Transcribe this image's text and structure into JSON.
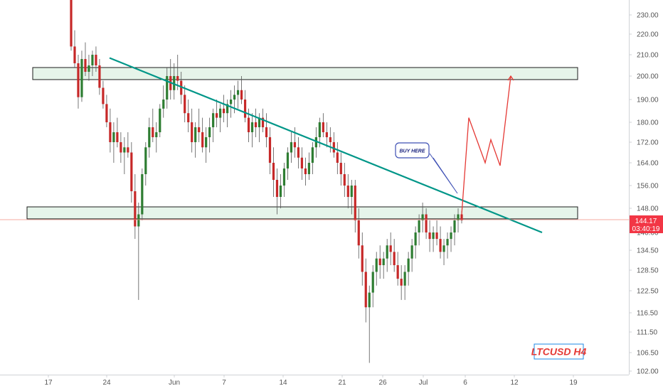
{
  "chart_data": {
    "type": "candlestick",
    "symbol_label": "LTCUSD H4",
    "y_ticks": [
      230,
      220,
      210,
      200,
      190,
      180,
      172,
      164,
      156,
      148,
      140,
      134.5,
      128.5,
      122.5,
      116.5,
      111.5,
      106.5,
      102
    ],
    "y_tick_labels": [
      "230.00",
      "220.00",
      "210.00",
      "200.00",
      "190.00",
      "180.00",
      "172.00",
      "164.00",
      "156.00",
      "148.00",
      "140.00",
      "134.50",
      "128.50",
      "122.50",
      "116.50",
      "111.50",
      "106.50",
      "102.00"
    ],
    "x_ticks": [
      "17",
      "24",
      "Jun",
      "7",
      "14",
      "21",
      "26",
      "Jul",
      "6",
      "12",
      "19"
    ],
    "current_price": "144.17",
    "countdown": "03:40:19",
    "callout_text": "BUY HERE",
    "zones": [
      {
        "name": "resistance",
        "low": 198.5,
        "high": 204
      },
      {
        "name": "support",
        "low": 144.5,
        "high": 148.5
      }
    ],
    "trendline": {
      "start": [
        "May 25",
        208.5
      ],
      "end": [
        "Jul 15",
        140
      ]
    },
    "projection": [
      146,
      182,
      164,
      173,
      163,
      200
    ],
    "candles_ohlc": [
      [
        238,
        240,
        212,
        214
      ],
      [
        214,
        222,
        204,
        206
      ],
      [
        206,
        210,
        186,
        191
      ],
      [
        191,
        212,
        189,
        208
      ],
      [
        208,
        216,
        200,
        202
      ],
      [
        202,
        210,
        198,
        205
      ],
      [
        205,
        212,
        200,
        210
      ],
      [
        210,
        214,
        202,
        205
      ],
      [
        205,
        208,
        192,
        195
      ],
      [
        195,
        198,
        186,
        188
      ],
      [
        188,
        192,
        178,
        180
      ],
      [
        180,
        186,
        168,
        172
      ],
      [
        172,
        180,
        164,
        176
      ],
      [
        176,
        182,
        170,
        172
      ],
      [
        172,
        176,
        164,
        168
      ],
      [
        168,
        174,
        160,
        170
      ],
      [
        170,
        176,
        166,
        168
      ],
      [
        168,
        172,
        150,
        154
      ],
      [
        154,
        160,
        138,
        142
      ],
      [
        142,
        150,
        120,
        146
      ],
      [
        146,
        162,
        144,
        160
      ],
      [
        160,
        172,
        156,
        170
      ],
      [
        170,
        182,
        166,
        178
      ],
      [
        178,
        186,
        172,
        174
      ],
      [
        174,
        180,
        168,
        176
      ],
      [
        176,
        188,
        174,
        186
      ],
      [
        186,
        196,
        182,
        190
      ],
      [
        190,
        204,
        186,
        200
      ],
      [
        200,
        208,
        190,
        194
      ],
      [
        194,
        206,
        190,
        200
      ],
      [
        200,
        210,
        194,
        198
      ],
      [
        198,
        202,
        188,
        192
      ],
      [
        192,
        196,
        180,
        184
      ],
      [
        184,
        190,
        176,
        180
      ],
      [
        180,
        186,
        168,
        172
      ],
      [
        172,
        180,
        166,
        178
      ],
      [
        178,
        186,
        172,
        176
      ],
      [
        176,
        182,
        168,
        170
      ],
      [
        170,
        178,
        164,
        174
      ],
      [
        174,
        182,
        168,
        178
      ],
      [
        178,
        186,
        172,
        184
      ],
      [
        184,
        190,
        178,
        182
      ],
      [
        182,
        188,
        176,
        186
      ],
      [
        186,
        192,
        180,
        184
      ],
      [
        184,
        190,
        178,
        188
      ],
      [
        188,
        194,
        182,
        190
      ],
      [
        190,
        196,
        184,
        192
      ],
      [
        192,
        198,
        186,
        194
      ],
      [
        194,
        200,
        188,
        190
      ],
      [
        190,
        194,
        180,
        182
      ],
      [
        182,
        186,
        172,
        176
      ],
      [
        176,
        184,
        170,
        180
      ],
      [
        180,
        186,
        174,
        178
      ],
      [
        178,
        184,
        172,
        182
      ],
      [
        182,
        186,
        176,
        178
      ],
      [
        178,
        184,
        170,
        174
      ],
      [
        174,
        178,
        160,
        164
      ],
      [
        164,
        170,
        152,
        158
      ],
      [
        158,
        162,
        146,
        152
      ],
      [
        152,
        160,
        148,
        156
      ],
      [
        156,
        164,
        152,
        162
      ],
      [
        162,
        170,
        158,
        168
      ],
      [
        168,
        176,
        164,
        172
      ],
      [
        172,
        178,
        166,
        170
      ],
      [
        170,
        174,
        162,
        166
      ],
      [
        166,
        170,
        158,
        162
      ],
      [
        162,
        166,
        156,
        160
      ],
      [
        160,
        168,
        158,
        164
      ],
      [
        164,
        172,
        160,
        170
      ],
      [
        170,
        178,
        166,
        174
      ],
      [
        174,
        182,
        170,
        180
      ],
      [
        180,
        184,
        174,
        176
      ],
      [
        176,
        180,
        170,
        174
      ],
      [
        174,
        178,
        168,
        172
      ],
      [
        172,
        176,
        166,
        168
      ],
      [
        168,
        172,
        160,
        164
      ],
      [
        164,
        168,
        156,
        160
      ],
      [
        160,
        164,
        152,
        156
      ],
      [
        156,
        160,
        148,
        152
      ],
      [
        152,
        158,
        146,
        156
      ],
      [
        156,
        158,
        140,
        144
      ],
      [
        144,
        148,
        132,
        136
      ],
      [
        136,
        140,
        124,
        128
      ],
      [
        128,
        132,
        114,
        118
      ],
      [
        118,
        124,
        104,
        122
      ],
      [
        122,
        130,
        118,
        128
      ],
      [
        128,
        134,
        124,
        132
      ],
      [
        132,
        136,
        126,
        130
      ],
      [
        130,
        134,
        126,
        132
      ],
      [
        132,
        138,
        128,
        136
      ],
      [
        136,
        140,
        130,
        134
      ],
      [
        134,
        138,
        128,
        130
      ],
      [
        130,
        134,
        124,
        126
      ],
      [
        126,
        130,
        120,
        124
      ],
      [
        124,
        130,
        120,
        128
      ],
      [
        128,
        134,
        124,
        132
      ],
      [
        132,
        138,
        128,
        136
      ],
      [
        136,
        142,
        132,
        140
      ],
      [
        140,
        146,
        136,
        144
      ],
      [
        144,
        150,
        140,
        146
      ],
      [
        146,
        148,
        138,
        140
      ],
      [
        140,
        144,
        134,
        138
      ],
      [
        138,
        142,
        134,
        140
      ],
      [
        140,
        144,
        136,
        138
      ],
      [
        138,
        142,
        132,
        134
      ],
      [
        134,
        138,
        130,
        136
      ],
      [
        136,
        140,
        132,
        138
      ],
      [
        138,
        142,
        134,
        140
      ],
      [
        140,
        146,
        136,
        144
      ],
      [
        144,
        148,
        140,
        146
      ],
      [
        146,
        147,
        143,
        144
      ]
    ]
  }
}
